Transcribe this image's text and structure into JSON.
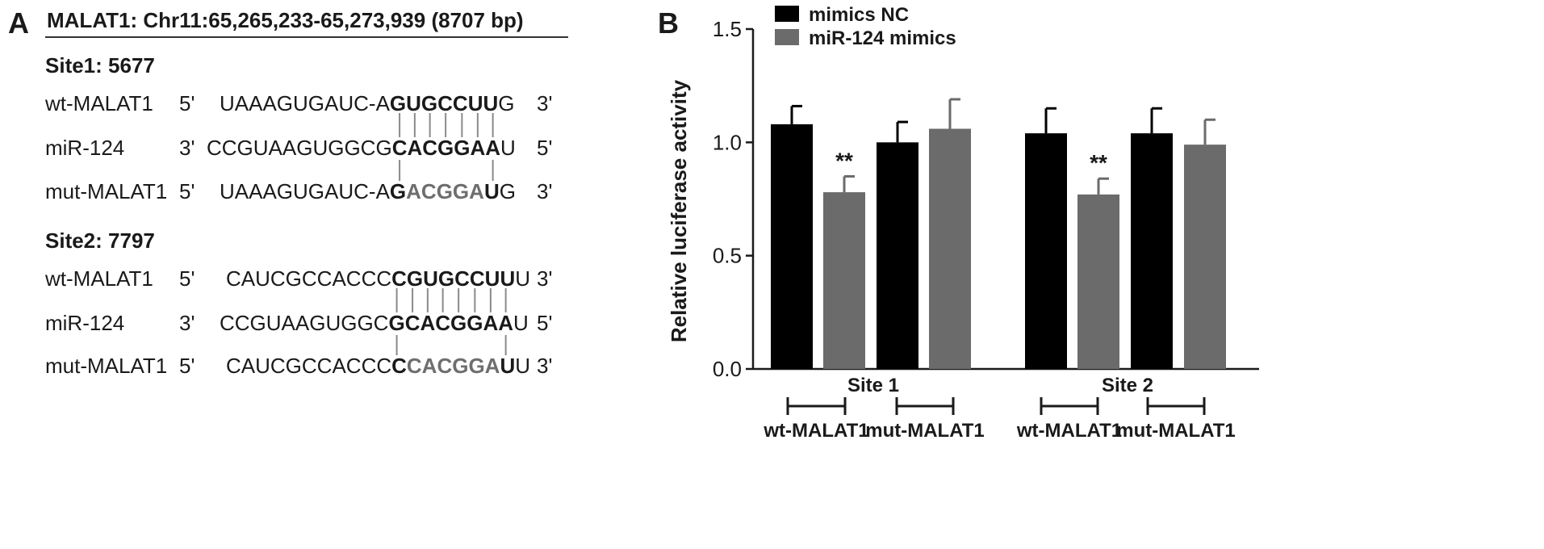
{
  "panel_a": {
    "letter": "A",
    "header": "MALAT1: Chr11:65,265,233-65,273,939 (8707 bp)",
    "sites": [
      {
        "title": "Site1: 5677",
        "rows": [
          {
            "name": "wt-MALAT1",
            "e1": "5'",
            "e2": "3'",
            "segs": [
              [
                "UAAAGUGAUC-A",
                "n"
              ],
              [
                "GUGCCUU",
                "b"
              ],
              [
                "G",
                "n"
              ]
            ]
          },
          {
            "name": "miR-124",
            "e1": "3'",
            "e2": "5'",
            "segs": [
              [
                "CCGUAAGUGGCG",
                "n"
              ],
              [
                "CACGGAA",
                "b"
              ],
              [
                "U",
                "n"
              ]
            ]
          },
          {
            "name": "mut-MALAT1",
            "e1": "5'",
            "e2": "3'",
            "segs": [
              [
                "UAAAGUGAUC-A",
                "n"
              ],
              [
                "G",
                "b"
              ],
              [
                "ACGGA",
                "g"
              ],
              [
                "U",
                "b"
              ],
              [
                "G",
                "n"
              ]
            ]
          }
        ]
      },
      {
        "title": "Site2: 7797",
        "rows": [
          {
            "name": "wt-MALAT1",
            "e1": "5'",
            "e2": "3'",
            "segs": [
              [
                "CAUCGCCACCC",
                "n"
              ],
              [
                "CGUGCCUU",
                "b"
              ],
              [
                "U",
                "n"
              ]
            ]
          },
          {
            "name": "miR-124",
            "e1": "3'",
            "e2": "5'",
            "segs": [
              [
                "CCGUAAGUGGC",
                "n"
              ],
              [
                "GCACGGAA",
                "b"
              ],
              [
                "U",
                "n"
              ]
            ]
          },
          {
            "name": "mut-MALAT1",
            "e1": "5'",
            "e2": "3'",
            "segs": [
              [
                "CAUCGCCACCC",
                "n"
              ],
              [
                "C",
                "b"
              ],
              [
                "CACGGA",
                "g"
              ],
              [
                "U",
                "b"
              ],
              [
                "U",
                "n"
              ]
            ]
          }
        ]
      }
    ]
  },
  "panel_b": {
    "letter": "B"
  },
  "chart_data": {
    "type": "bar",
    "title": "",
    "ylabel": "Relative luciferase activity",
    "ylim": [
      0,
      1.5
    ],
    "yticks": [
      "0.0",
      "0.5",
      "1.0",
      "1.5"
    ],
    "groups": [
      "Site 1",
      "Site 2"
    ],
    "bracket_labels": [
      "wt-MALAT1",
      "mut-MALAT1"
    ],
    "bars": [
      {
        "group": "Site 1",
        "construct": "wt-MALAT1",
        "series": "mimics NC",
        "value": 1.08,
        "error": 0.08,
        "sig": ""
      },
      {
        "group": "Site 1",
        "construct": "wt-MALAT1",
        "series": "miR-124 mimics",
        "value": 0.78,
        "error": 0.07,
        "sig": "**"
      },
      {
        "group": "Site 1",
        "construct": "mut-MALAT1",
        "series": "mimics NC",
        "value": 1.0,
        "error": 0.09,
        "sig": ""
      },
      {
        "group": "Site 1",
        "construct": "mut-MALAT1",
        "series": "miR-124 mimics",
        "value": 1.06,
        "error": 0.13,
        "sig": ""
      },
      {
        "group": "Site 2",
        "construct": "wt-MALAT1",
        "series": "mimics NC",
        "value": 1.04,
        "error": 0.11,
        "sig": ""
      },
      {
        "group": "Site 2",
        "construct": "wt-MALAT1",
        "series": "miR-124 mimics",
        "value": 0.77,
        "error": 0.07,
        "sig": "**"
      },
      {
        "group": "Site 2",
        "construct": "mut-MALAT1",
        "series": "mimics NC",
        "value": 1.04,
        "error": 0.11,
        "sig": ""
      },
      {
        "group": "Site 2",
        "construct": "mut-MALAT1",
        "series": "miR-124 mimics",
        "value": 0.99,
        "error": 0.11,
        "sig": ""
      }
    ],
    "legend": [
      {
        "name": "mimics NC",
        "color": "#000000"
      },
      {
        "name": "miR-124 mimics",
        "color": "#6b6b6b"
      }
    ],
    "legend_position": "top-left"
  }
}
